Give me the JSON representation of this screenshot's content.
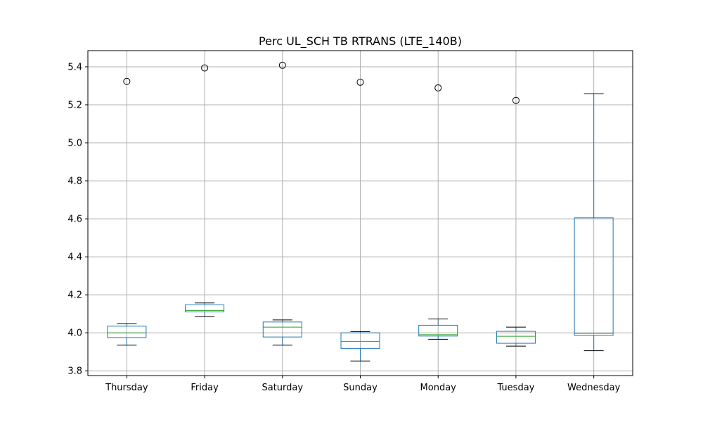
{
  "chart_data": {
    "type": "boxplot",
    "title": "Perc UL_SCH TB RTRANS (LTE_140B)",
    "xlabel": "",
    "ylabel": "",
    "ylim": [
      3.775,
      5.485
    ],
    "yticks": [
      3.8,
      4.0,
      4.2,
      4.4,
      4.6,
      4.8,
      5.0,
      5.2,
      5.4
    ],
    "ytick_labels": [
      "3.8",
      "4.0",
      "4.2",
      "4.4",
      "4.6",
      "4.8",
      "5.0",
      "5.2",
      "5.4"
    ],
    "grid": true,
    "categories": [
      "Thursday",
      "Friday",
      "Saturday",
      "Sunday",
      "Monday",
      "Tuesday",
      "Wednesday"
    ],
    "boxes": [
      {
        "category": "Thursday",
        "whisker_low": 3.935,
        "q1": 3.975,
        "median": 4.0,
        "q3": 4.035,
        "whisker_high": 4.048,
        "outliers": [
          5.323
        ]
      },
      {
        "category": "Friday",
        "whisker_low": 4.085,
        "q1": 4.11,
        "median": 4.118,
        "q3": 4.147,
        "whisker_high": 4.157,
        "outliers": [
          5.394
        ]
      },
      {
        "category": "Saturday",
        "whisker_low": 3.935,
        "q1": 3.978,
        "median": 4.03,
        "q3": 4.057,
        "whisker_high": 4.068,
        "outliers": [
          5.408
        ]
      },
      {
        "category": "Sunday",
        "whisker_low": 3.852,
        "q1": 3.918,
        "median": 3.955,
        "q3": 4.0,
        "whisker_high": 4.007,
        "outliers": [
          5.319
        ]
      },
      {
        "category": "Monday",
        "whisker_low": 3.966,
        "q1": 3.983,
        "median": 3.99,
        "q3": 4.04,
        "whisker_high": 4.073,
        "outliers": [
          5.289
        ]
      },
      {
        "category": "Tuesday",
        "whisker_low": 3.93,
        "q1": 3.945,
        "median": 3.982,
        "q3": 4.008,
        "whisker_high": 4.03,
        "outliers": [
          5.223
        ]
      },
      {
        "category": "Wednesday",
        "whisker_low": 3.906,
        "q1": 3.987,
        "median": 3.997,
        "q3": 4.605,
        "whisker_high": 5.258,
        "outliers": []
      }
    ],
    "colors": {
      "box": "#1f77b4",
      "median": "#2ca02c",
      "whisker": "#000000",
      "grid": "#b0b0b0",
      "outlier": "#000000"
    }
  }
}
